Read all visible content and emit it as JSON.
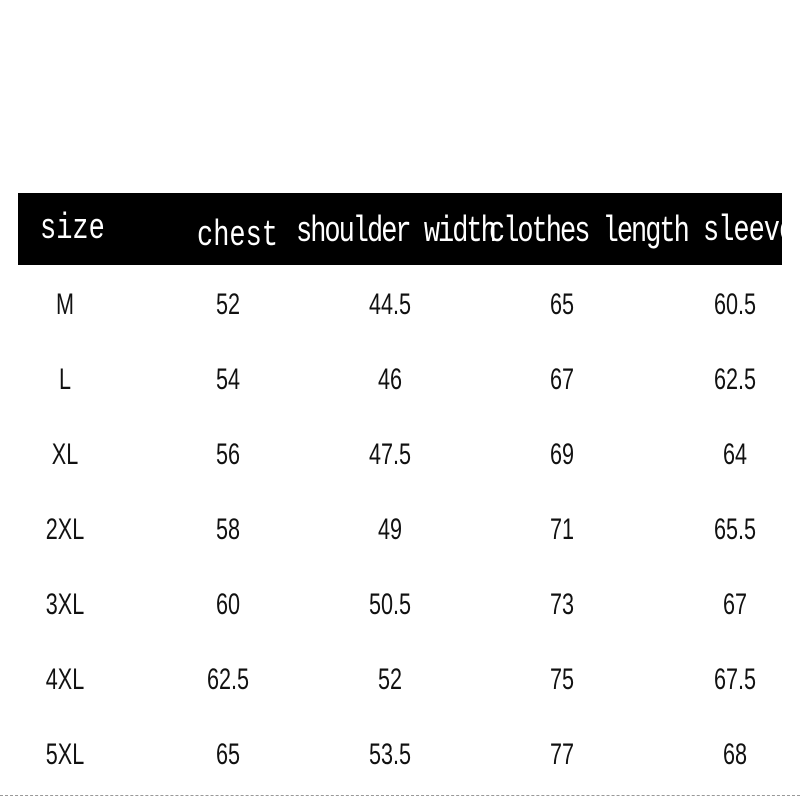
{
  "table": {
    "headers": [
      "size",
      "chest",
      "shoulder width",
      "clothes length",
      "sleeve"
    ],
    "rows": [
      [
        "M",
        "52",
        "44.5",
        "65",
        "60.5"
      ],
      [
        "L",
        "54",
        "46",
        "67",
        "62.5"
      ],
      [
        "XL",
        "56",
        "47.5",
        "69",
        "64"
      ],
      [
        "2XL",
        "58",
        "49",
        "71",
        "65.5"
      ],
      [
        "3XL",
        "60",
        "50.5",
        "73",
        "67"
      ],
      [
        "4XL",
        "62.5",
        "52",
        "75",
        "67.5"
      ],
      [
        "5XL",
        "65",
        "53.5",
        "77",
        "68"
      ]
    ]
  },
  "colors": {
    "header_bg": "#000000",
    "header_text": "#ffffff",
    "cell_text": "#111111"
  }
}
